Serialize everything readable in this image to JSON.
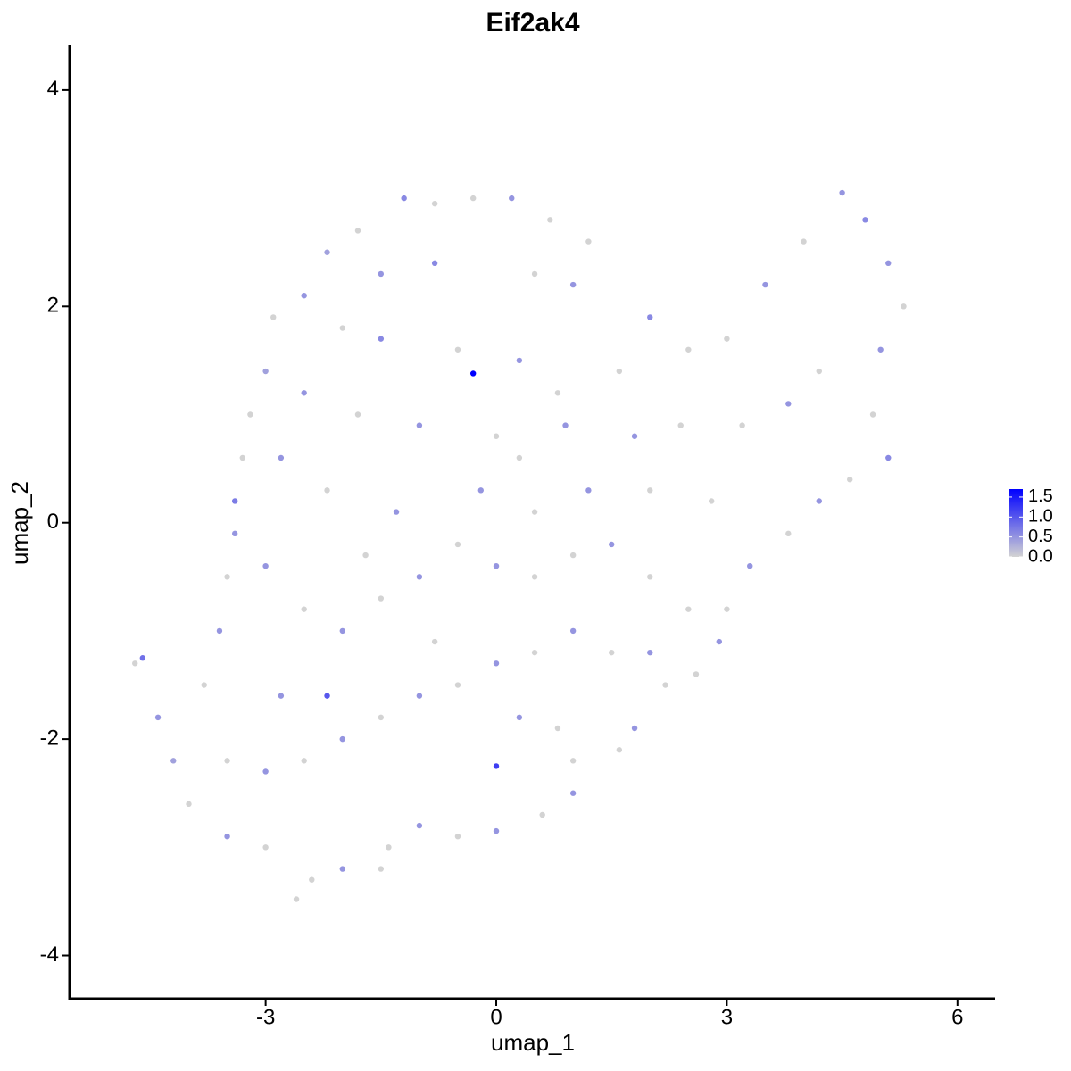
{
  "chart_data": {
    "type": "scatter",
    "title": "Eif2ak4",
    "x_label": "umap_1",
    "y_label": "umap_2",
    "xlim": [
      -5.55,
      6.49
    ],
    "ylim": [
      -4.4,
      4.42
    ],
    "xticks": [
      -3,
      0,
      3,
      6
    ],
    "yticks": [
      -4,
      -2,
      0,
      2,
      4
    ],
    "grid": false,
    "color_low": "#d3d3d3",
    "color_high": "#0000ff",
    "clim": [
      0,
      1.7
    ],
    "cticks": [
      {
        "value": 0,
        "label": "0.0"
      },
      {
        "value": 0.5,
        "label": "0.5"
      },
      {
        "value": 1,
        "label": "1.0"
      },
      {
        "value": 1.5,
        "label": "1.5"
      }
    ],
    "x": [
      -1.2,
      -0.8,
      -0.3,
      0.2,
      0.7,
      -1.8,
      -2.2,
      -2.5,
      -2.9,
      -3.0,
      -3.2,
      -3.3,
      -3.4,
      -1.5,
      -0.8,
      0.5,
      1.0,
      1.2,
      -2.0,
      -1.5,
      -0.5,
      0.3,
      0.8,
      -0.3,
      -2.5,
      -1.8,
      -1.0,
      0,
      0.9,
      1.6,
      2.0,
      2.5,
      3.0,
      3.5,
      4.0,
      4.5,
      4.8,
      5.1,
      5.3,
      5.0,
      4.2,
      3.8,
      3.2,
      2.4,
      1.8,
      4.9,
      5.1,
      4.6,
      4.2,
      3.8,
      3.3,
      3.0,
      2.9,
      2.6,
      2.2,
      1.8,
      1.6,
      1.0,
      1.0,
      0.6,
      0,
      0,
      -0.5,
      -1.0,
      -1.4,
      -1.5,
      -2.0,
      -2.4,
      -2.6,
      -3.0,
      -3.5,
      -4.0,
      -4.2,
      -4.6,
      -4.7,
      -4.4,
      -3.8,
      -3.6,
      -3.5,
      -3.4,
      -3.0,
      -2.5,
      -2.0,
      -1.5,
      -1.0,
      -0.5,
      0,
      0.5,
      1.0,
      1.5,
      2.0,
      2.5,
      2.0,
      1.5,
      1.0,
      0.5,
      0,
      -0.5,
      -1.0,
      -1.5,
      -2.0,
      -2.5,
      -3.0,
      -3.5,
      -2.8,
      -2.2,
      -0.8,
      0.3,
      0.8,
      -0.2,
      0.5,
      1.2,
      2.0,
      2.8,
      -1.3,
      -2.2,
      -2.8,
      -1.7,
      0.3
    ],
    "y": [
      3.0,
      2.95,
      3.0,
      3.0,
      2.8,
      2.7,
      2.5,
      2.1,
      1.9,
      1.4,
      1.0,
      0.6,
      0.2,
      2.3,
      2.4,
      2.3,
      2.2,
      2.6,
      1.8,
      1.7,
      1.6,
      1.5,
      1.2,
      1.38,
      1.2,
      1.0,
      0.9,
      0.8,
      0.9,
      1.4,
      1.9,
      1.6,
      1.7,
      2.2,
      2.6,
      3.05,
      2.8,
      2.4,
      2.0,
      1.6,
      1.4,
      1.1,
      0.9,
      0.9,
      0.8,
      1.0,
      0.6,
      0.4,
      0.2,
      -0.1,
      -0.4,
      -0.8,
      -1.1,
      -1.4,
      -1.5,
      -1.9,
      -2.1,
      -2.2,
      -2.5,
      -2.7,
      -2.85,
      -2.25,
      -2.9,
      -2.8,
      -3.0,
      -3.2,
      -3.2,
      -3.3,
      -3.48,
      -3.0,
      -2.9,
      -2.6,
      -2.2,
      -1.25,
      -1.3,
      -1.8,
      -1.5,
      -1.0,
      -0.5,
      -0.1,
      -0.4,
      -0.8,
      -1.0,
      -0.7,
      -0.5,
      -0.2,
      -0.4,
      -0.5,
      -0.3,
      -0.2,
      -0.5,
      -0.8,
      -1.2,
      -1.2,
      -1.0,
      -1.2,
      -1.3,
      -1.5,
      -1.6,
      -1.8,
      -2.0,
      -2.2,
      -2.3,
      -2.2,
      -1.6,
      -1.6,
      -1.1,
      -1.8,
      -1.9,
      0.3,
      0.1,
      0.3,
      0.3,
      0.2,
      0.1,
      0.3,
      0.6,
      -0.3,
      0.6
    ],
    "expression": [
      0.6,
      0,
      0,
      0.5,
      0,
      0,
      0.4,
      0.5,
      0,
      0.4,
      0,
      0,
      0.7,
      0.5,
      0.6,
      0,
      0.5,
      0,
      0,
      0.6,
      0,
      0.5,
      0,
      1.7,
      0.5,
      0,
      0.5,
      0,
      0.5,
      0,
      0.6,
      0,
      0,
      0.5,
      0,
      0.5,
      0.6,
      0.5,
      0,
      0.5,
      0,
      0.5,
      0,
      0,
      0.5,
      0,
      0.6,
      0,
      0.5,
      0,
      0.5,
      0,
      0.5,
      0,
      0,
      0.5,
      0,
      0,
      0.5,
      0,
      0.5,
      1.2,
      0,
      0.5,
      0,
      0,
      0.5,
      0,
      0,
      0,
      0.5,
      0,
      0.4,
      0.8,
      0,
      0.5,
      0,
      0.5,
      0,
      0.5,
      0.5,
      0,
      0.5,
      0,
      0.5,
      0,
      0.5,
      0,
      0,
      0.5,
      0,
      0,
      0.5,
      0,
      0.5,
      0,
      0.5,
      0,
      0.5,
      0,
      0.5,
      0,
      0.5,
      0,
      0.5,
      1.0,
      0,
      0.5,
      0,
      0.5,
      0,
      0.5,
      0,
      0,
      0.5,
      0,
      0.5,
      0,
      0
    ]
  }
}
